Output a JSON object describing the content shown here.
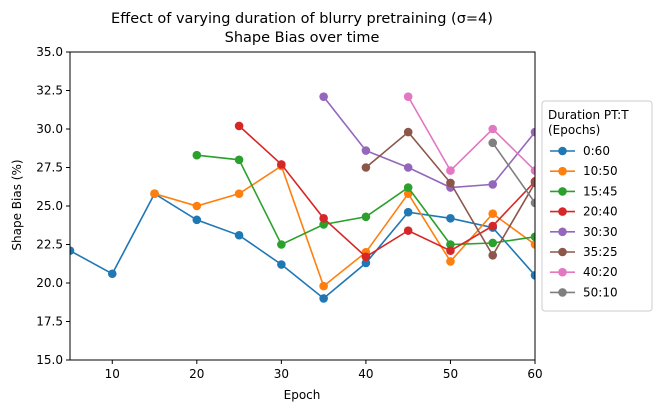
{
  "chart_data": {
    "type": "line",
    "title_line1": "Effect of varying duration of blurry pretraining (σ=4)",
    "title_line2": "Shape Bias over time",
    "xlabel": "Epoch",
    "ylabel": "Shape Bias (%)",
    "xlim": [
      5,
      60
    ],
    "ylim": [
      15,
      35
    ],
    "xticks": [
      10,
      20,
      30,
      40,
      50,
      60
    ],
    "yticks": [
      15.0,
      17.5,
      20.0,
      22.5,
      25.0,
      27.5,
      30.0,
      32.5,
      35.0
    ],
    "ytick_labels": [
      "15.0",
      "17.5",
      "20.0",
      "22.5",
      "25.0",
      "27.5",
      "30.0",
      "32.5",
      "35.0"
    ],
    "grid": false,
    "legend_title_line1": "Duration PT:T",
    "legend_title_line2": "(Epochs)",
    "legend_position": "outside-right",
    "series": [
      {
        "name": "0:60",
        "color": "#1f77b4",
        "x": [
          5,
          10,
          15,
          20,
          25,
          30,
          35,
          40,
          45,
          50,
          55,
          60
        ],
        "y": [
          22.1,
          20.6,
          25.8,
          24.1,
          23.1,
          21.2,
          19.0,
          21.3,
          24.6,
          24.2,
          23.6,
          20.5
        ]
      },
      {
        "name": "10:50",
        "color": "#ff7f0e",
        "x": [
          15,
          20,
          25,
          30,
          35,
          40,
          45,
          50,
          55,
          60
        ],
        "y": [
          25.8,
          25.0,
          25.8,
          27.6,
          19.8,
          22.0,
          25.8,
          21.4,
          24.5,
          22.5
        ]
      },
      {
        "name": "15:45",
        "color": "#2ca02c",
        "x": [
          20,
          25,
          30,
          35,
          40,
          45,
          50,
          55,
          60
        ],
        "y": [
          28.3,
          28.0,
          22.5,
          23.8,
          24.3,
          26.2,
          22.5,
          22.6,
          23.0
        ]
      },
      {
        "name": "20:40",
        "color": "#d62728",
        "x": [
          25,
          30,
          35,
          40,
          45,
          50,
          55,
          60
        ],
        "y": [
          30.2,
          27.7,
          24.2,
          21.7,
          23.4,
          22.1,
          23.7,
          26.6
        ]
      },
      {
        "name": "30:30",
        "color": "#9467bd",
        "x": [
          35,
          40,
          45,
          50,
          55,
          60
        ],
        "y": [
          32.1,
          28.6,
          27.5,
          26.2,
          26.4,
          29.8
        ]
      },
      {
        "name": "35:25",
        "color": "#8c564b",
        "x": [
          40,
          45,
          50,
          55,
          60
        ],
        "y": [
          27.5,
          29.8,
          26.5,
          21.8,
          26.5
        ]
      },
      {
        "name": "40:20",
        "color": "#e377c2",
        "x": [
          45,
          50,
          55,
          60
        ],
        "y": [
          32.1,
          27.3,
          30.0,
          27.3
        ]
      },
      {
        "name": "50:10",
        "color": "#7f7f7f",
        "x": [
          55,
          60
        ],
        "y": [
          29.1,
          25.2
        ]
      }
    ]
  }
}
